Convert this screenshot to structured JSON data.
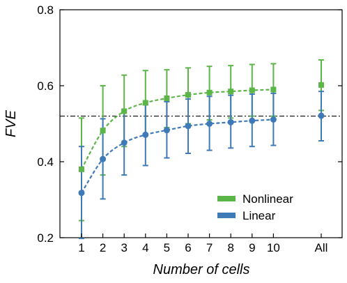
{
  "chart_data": {
    "type": "line",
    "xlabel": "Number of cells",
    "ylabel": "FVE",
    "categories": [
      "1",
      "2",
      "3",
      "4",
      "5",
      "6",
      "7",
      "8",
      "9",
      "10",
      "All"
    ],
    "ylim": [
      0.2,
      0.8
    ],
    "yticks": [
      "0.2",
      "0.4",
      "0.6",
      "0.8"
    ],
    "reference_line": 0.52,
    "legend": {
      "position": "bottom-right"
    },
    "grid": false,
    "series": [
      {
        "name": "Nonlinear",
        "color": "#5cb547",
        "marker": "square",
        "values": [
          0.38,
          0.482,
          0.533,
          0.555,
          0.567,
          0.576,
          0.582,
          0.585,
          0.588,
          0.59,
          0.602
        ],
        "err_low": [
          0.245,
          0.365,
          0.44,
          0.47,
          0.49,
          0.5,
          0.51,
          0.515,
          0.52,
          0.52,
          0.535
        ],
        "err_high": [
          0.515,
          0.6,
          0.628,
          0.64,
          0.642,
          0.647,
          0.651,
          0.653,
          0.656,
          0.658,
          0.668
        ]
      },
      {
        "name": "Linear",
        "color": "#3e7ab8",
        "marker": "circle",
        "values": [
          0.318,
          0.407,
          0.45,
          0.471,
          0.483,
          0.494,
          0.5,
          0.504,
          0.508,
          0.511,
          0.521
        ],
        "err_low": [
          0.198,
          0.302,
          0.365,
          0.39,
          0.41,
          0.422,
          0.43,
          0.436,
          0.44,
          0.443,
          0.455
        ],
        "err_high": [
          0.44,
          0.513,
          0.537,
          0.55,
          0.558,
          0.565,
          0.572,
          0.575,
          0.578,
          0.58,
          0.585
        ]
      }
    ]
  }
}
